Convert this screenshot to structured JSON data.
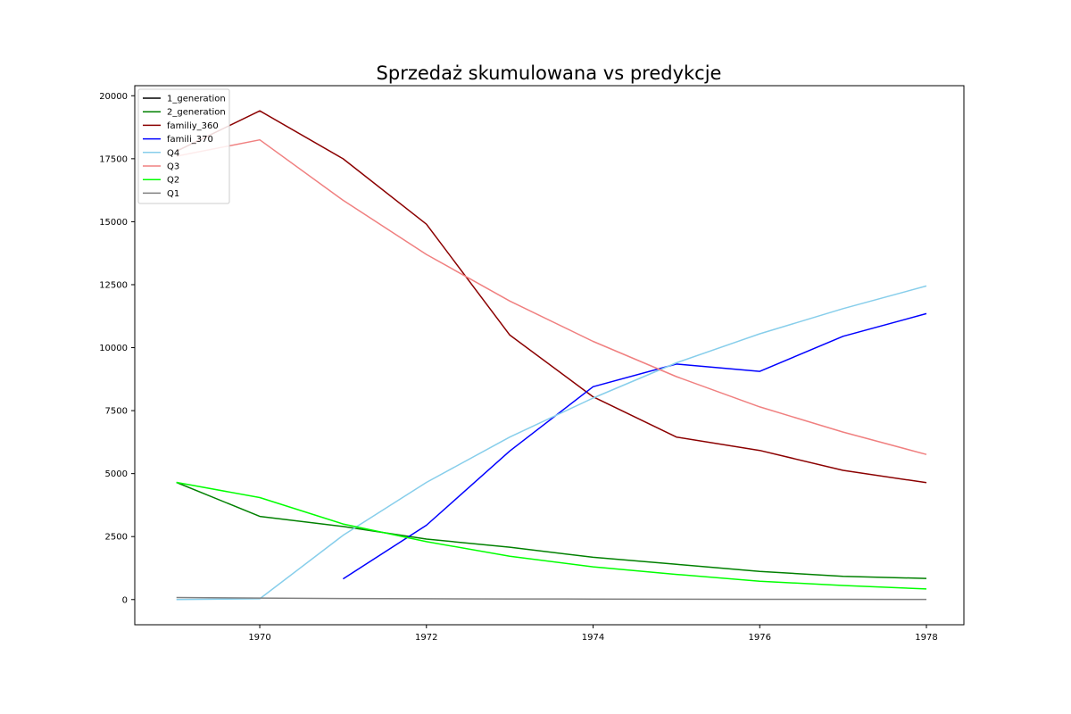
{
  "chart_data": {
    "type": "line",
    "title": "Sprzedaż skumulowana vs predykcje",
    "xlabel": "",
    "ylabel": "",
    "xlim": [
      1968.5,
      1978.45
    ],
    "ylim": [
      -1000,
      20400
    ],
    "x_ticks": [
      1970,
      1972,
      1974,
      1976,
      1978
    ],
    "y_ticks": [
      0,
      2500,
      5000,
      7500,
      10000,
      12500,
      15000,
      17500,
      20000
    ],
    "legend_position": "top-left",
    "grid": false,
    "series": [
      {
        "name": "1_generation",
        "color": "#000000",
        "x": [],
        "values": []
      },
      {
        "name": "2_generation",
        "color": "#008000",
        "x": [
          1969,
          1970,
          1971,
          1972,
          1973,
          1974,
          1975,
          1976,
          1977,
          1978
        ],
        "values": [
          4650,
          3300,
          2900,
          2400,
          2080,
          1680,
          1400,
          1120,
          920,
          840
        ]
      },
      {
        "name": "familiy_360",
        "color": "#8b0000",
        "x": [
          1969,
          1970,
          1971,
          1972,
          1973,
          1974,
          1975,
          1976,
          1977,
          1978
        ],
        "values": [
          17800,
          19400,
          17500,
          14900,
          10500,
          8050,
          6450,
          5920,
          5130,
          4640
        ]
      },
      {
        "name": "famili_370",
        "color": "#0000ff",
        "x": [
          1971,
          1972,
          1973,
          1974,
          1975,
          1976,
          1977,
          1978
        ],
        "values": [
          820,
          2950,
          5900,
          8450,
          9350,
          9060,
          10450,
          11350
        ]
      },
      {
        "name": "Q4",
        "color": "#87ceeb",
        "x": [
          1969,
          1970,
          1971,
          1972,
          1973,
          1974,
          1975,
          1976,
          1977,
          1978
        ],
        "values": [
          0,
          30,
          2550,
          4650,
          6450,
          8000,
          9400,
          10550,
          11550,
          12450
        ]
      },
      {
        "name": "Q3",
        "color": "#f08080",
        "x": [
          1969,
          1970,
          1971,
          1972,
          1973,
          1974,
          1975,
          1976,
          1977,
          1978
        ],
        "values": [
          17600,
          18250,
          15850,
          13700,
          11850,
          10250,
          8850,
          7650,
          6650,
          5760
        ]
      },
      {
        "name": "Q2",
        "color": "#00ff00",
        "x": [
          1969,
          1970,
          1971,
          1972,
          1973,
          1974,
          1975,
          1976,
          1977,
          1978
        ],
        "values": [
          4650,
          4050,
          3000,
          2300,
          1720,
          1300,
          1000,
          730,
          560,
          420
        ]
      },
      {
        "name": "Q1",
        "color": "#808080",
        "x": [
          1969,
          1970,
          1971,
          1972,
          1973,
          1974,
          1975,
          1976,
          1977,
          1978
        ],
        "values": [
          80,
          60,
          40,
          30,
          25,
          20,
          15,
          10,
          8,
          5
        ]
      }
    ]
  }
}
